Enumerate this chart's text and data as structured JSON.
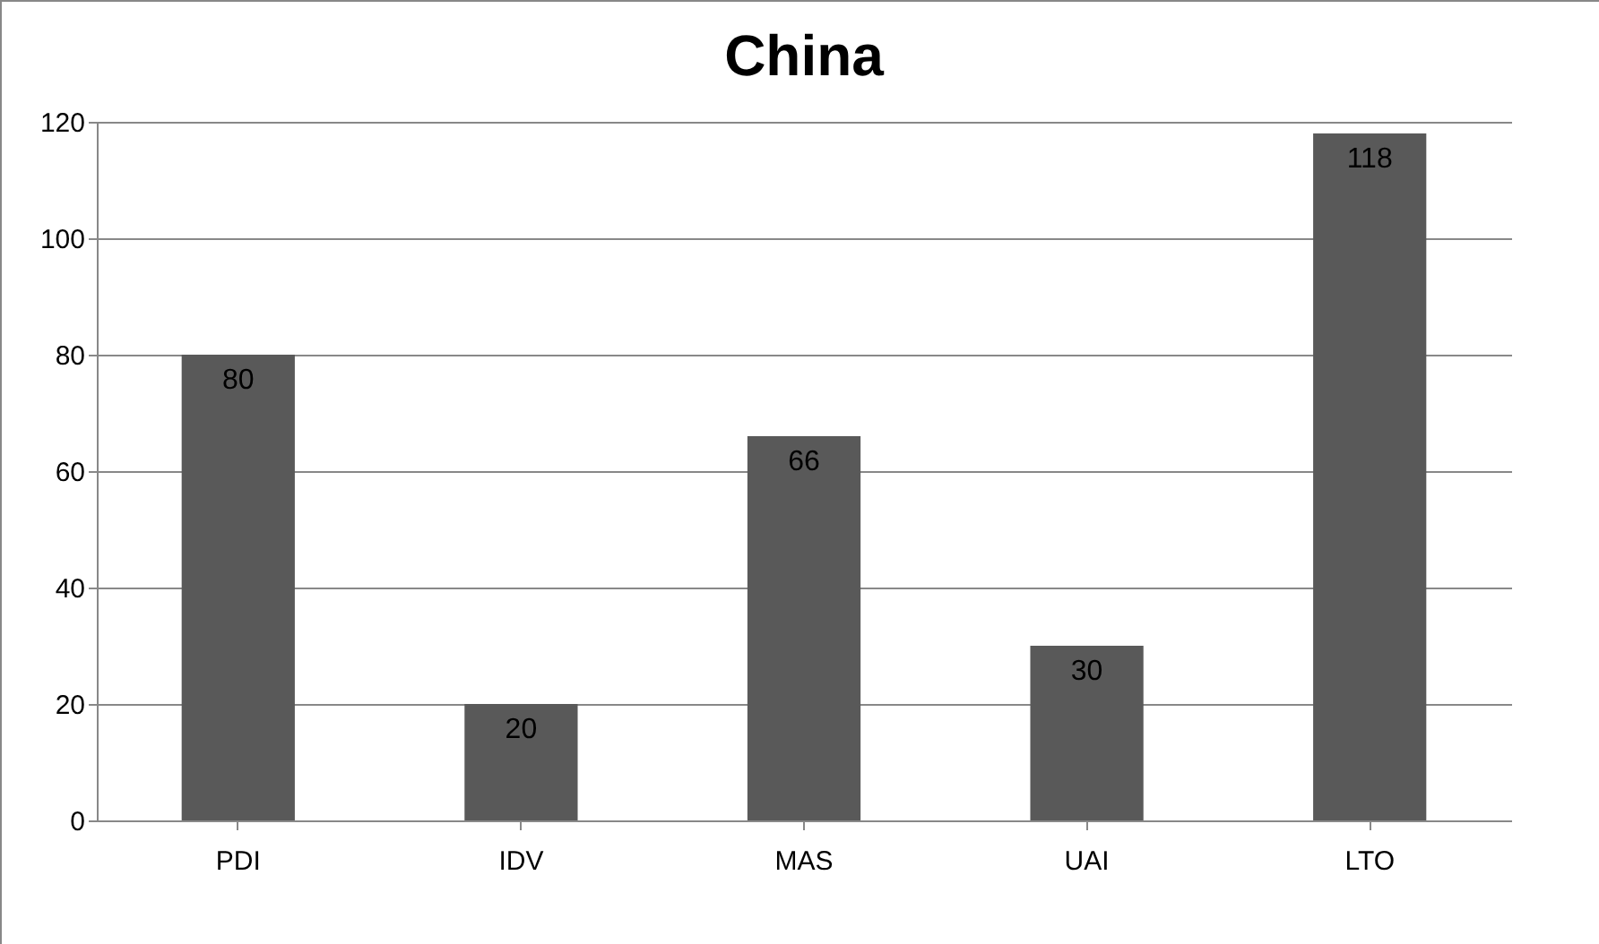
{
  "chart_data": {
    "type": "bar",
    "title": "China",
    "categories": [
      "PDI",
      "IDV",
      "MAS",
      "UAI",
      "LTO"
    ],
    "values": [
      80,
      20,
      66,
      30,
      118
    ],
    "color": "#595959",
    "ylim": [
      0,
      120
    ],
    "yticks": [
      0,
      20,
      40,
      60,
      80,
      100,
      120
    ],
    "grid": true,
    "data_labels": true
  }
}
